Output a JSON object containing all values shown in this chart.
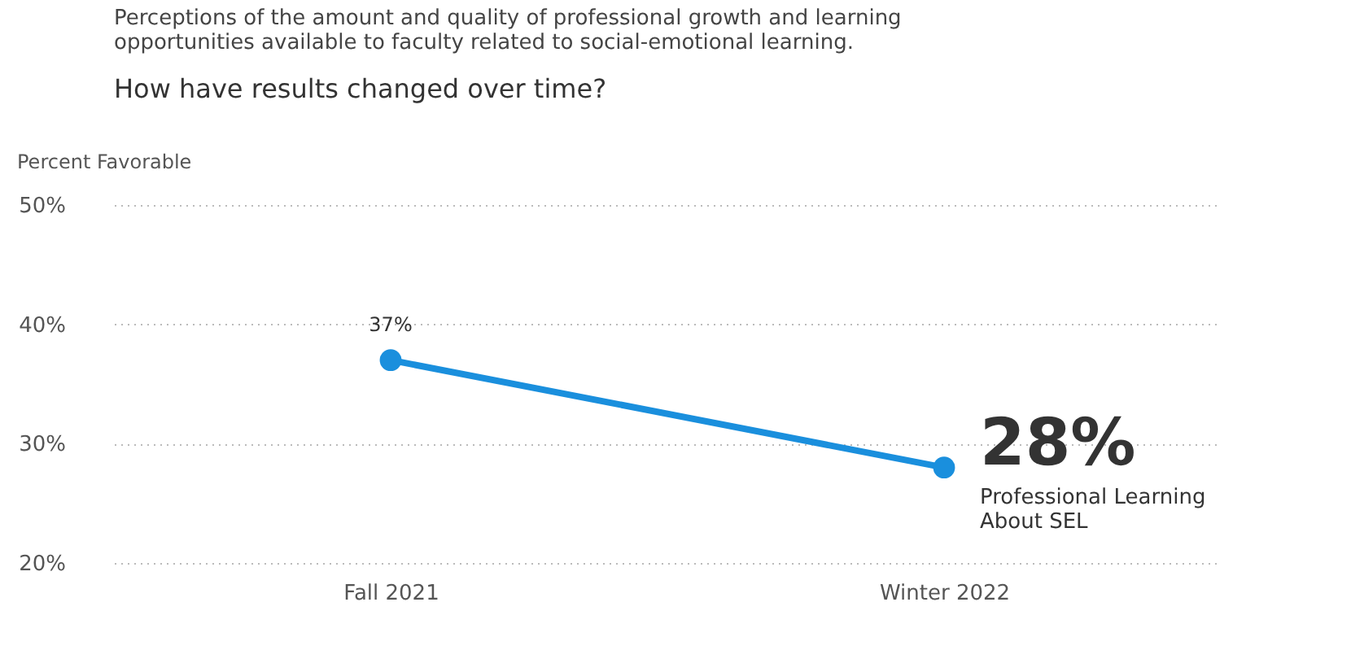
{
  "chart_data": {
    "type": "line",
    "title": "Perceptions of the amount and quality of professional growth and learning opportunities available to faculty related to social-emotional learning.",
    "subtitle": "How have results changed over time?",
    "ylabel": "Percent Favorable",
    "categories": [
      "Fall 2021",
      "Winter 2022"
    ],
    "series": [
      {
        "name": "Professional Learning About SEL",
        "color": "#1a8fdd",
        "values": [
          37,
          28
        ],
        "value_labels": [
          "37%",
          "28%"
        ]
      }
    ],
    "ylim": [
      20,
      50
    ],
    "yticks": [
      {
        "value": 20,
        "label": "20%"
      },
      {
        "value": 30,
        "label": "30%"
      },
      {
        "value": 40,
        "label": "40%"
      },
      {
        "value": 50,
        "label": "50%"
      }
    ],
    "grid": "y",
    "marker": "circle",
    "line_style": "solid",
    "legend": false
  }
}
